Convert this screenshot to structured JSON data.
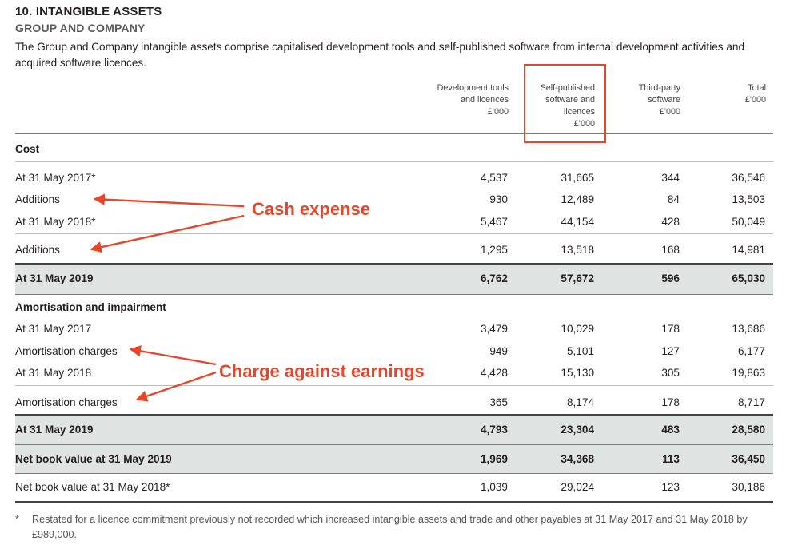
{
  "heading": {
    "title": "10. INTANGIBLE ASSETS",
    "subtitle": "GROUP AND COMPANY",
    "intro": "The Group and Company intangible assets comprise capitalised development tools and self-published software from internal development activities and acquired software licences."
  },
  "columns": [
    {
      "line1": "",
      "line2": "Development tools",
      "line3": "and licences",
      "unit": "£'000"
    },
    {
      "line1": "Self-published",
      "line2": "software and",
      "line3": "licences",
      "unit": "£'000"
    },
    {
      "line1": "",
      "line2": "Third-party",
      "line3": "software",
      "unit": "£'000"
    },
    {
      "line1": "",
      "line2": "",
      "line3": "Total",
      "unit": "£'000"
    }
  ],
  "sections": {
    "cost": "Cost",
    "amort": "Amortisation and impairment"
  },
  "rows": [
    {
      "label": "At 31 May 2017*",
      "v": [
        "4,537",
        "31,665",
        "344",
        "36,546"
      ]
    },
    {
      "label": "Additions",
      "v": [
        "930",
        "12,489",
        "84",
        "13,503"
      ]
    },
    {
      "label": "At 31 May 2018*",
      "v": [
        "5,467",
        "44,154",
        "428",
        "50,049"
      ]
    },
    {
      "label": "Additions",
      "v": [
        "1,295",
        "13,518",
        "168",
        "14,981"
      ]
    },
    {
      "label": "At 31 May 2019",
      "v": [
        "6,762",
        "57,672",
        "596",
        "65,030"
      ]
    },
    {
      "label": "At 31 May 2017",
      "v": [
        "3,479",
        "10,029",
        "178",
        "13,686"
      ]
    },
    {
      "label": "Amortisation charges",
      "v": [
        "949",
        "5,101",
        "127",
        "6,177"
      ]
    },
    {
      "label": "At 31 May 2018",
      "v": [
        "4,428",
        "15,130",
        "305",
        "19,863"
      ]
    },
    {
      "label": "Amortisation charges",
      "v": [
        "365",
        "8,174",
        "178",
        "8,717"
      ]
    },
    {
      "label": "At 31 May 2019",
      "v": [
        "4,793",
        "23,304",
        "483",
        "28,580"
      ]
    },
    {
      "label": "Net book value at 31 May 2019",
      "v": [
        "1,969",
        "34,368",
        "113",
        "36,450"
      ]
    },
    {
      "label": "Net book value at 31 May 2018*",
      "v": [
        "1,039",
        "29,024",
        "123",
        "30,186"
      ]
    }
  ],
  "annotations": {
    "cash": "Cash expense",
    "charge": "Charge against earnings"
  },
  "footnote": {
    "star": "*",
    "text": "Restated for a licence commitment previously not recorded which increased intangible assets and trade and other payables at 31 May 2017 and 31 May 2018 by £989,000."
  },
  "colors": {
    "accent": "#e8462a",
    "shade": "#dfe3e2"
  }
}
